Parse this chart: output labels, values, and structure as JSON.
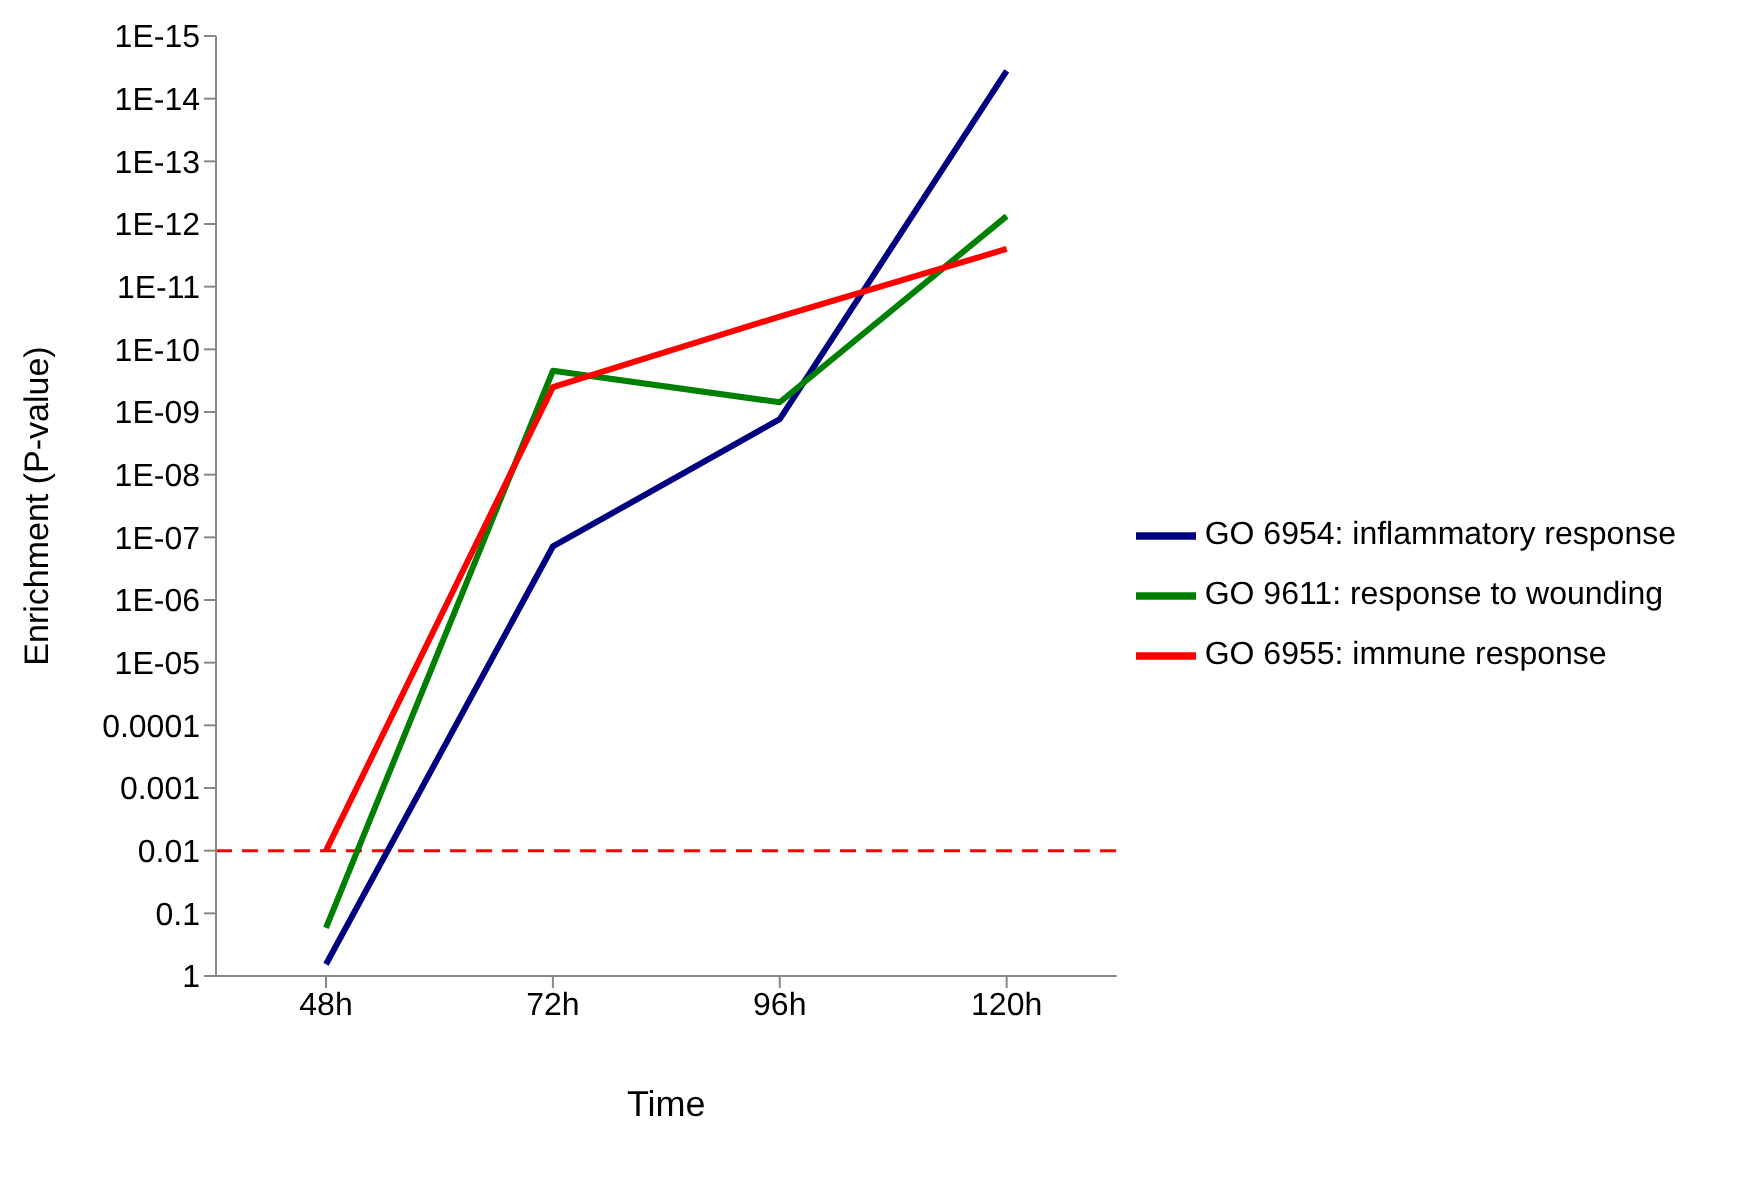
{
  "chart_data": {
    "type": "line",
    "xlabel": "Time",
    "ylabel": "Enrichment (P-value)",
    "categories": [
      "48h",
      "72h",
      "96h",
      "120h"
    ],
    "series": [
      {
        "name": "GO 6954: inflammatory response",
        "color": "#000080",
        "values": [
          0.65,
          1.4e-07,
          1.3e-09,
          3.6e-15
        ]
      },
      {
        "name": "GO 9611: response to wounding",
        "color": "#008000",
        "values": [
          0.17,
          2.2e-10,
          7e-10,
          7.5e-13
        ]
      },
      {
        "name": "GO 6955: immune response",
        "color": "#ff0000",
        "values": [
          0.01,
          4e-10,
          3e-11,
          2.5e-12
        ]
      }
    ],
    "log": "y",
    "ylim": [
      1,
      1e-15
    ],
    "yticks": [
      1,
      0.1,
      0.01,
      0.001,
      0.0001,
      {
        "value": 1e-05,
        "label": "1E-05"
      },
      {
        "value": 1e-06,
        "label": "1E-06"
      },
      {
        "value": 1e-07,
        "label": "1E-07"
      },
      {
        "value": 1e-08,
        "label": "1E-08"
      },
      {
        "value": 1e-09,
        "label": "1E-09"
      },
      {
        "value": 1e-10,
        "label": "1E-10"
      },
      {
        "value": 1e-11,
        "label": "1E-11"
      },
      {
        "value": 1e-12,
        "label": "1E-12"
      },
      {
        "value": 1e-13,
        "label": "1E-13"
      },
      {
        "value": 1e-14,
        "label": "1E-14"
      },
      {
        "value": 1e-15,
        "label": "1E-15"
      }
    ],
    "ref_lines": [
      {
        "axis": "y",
        "value": 0.01,
        "color": "#ff0000",
        "line_style": "dashed"
      }
    ],
    "grid": false,
    "legend": "right",
    "marker": "none",
    "line_style": "solid"
  }
}
